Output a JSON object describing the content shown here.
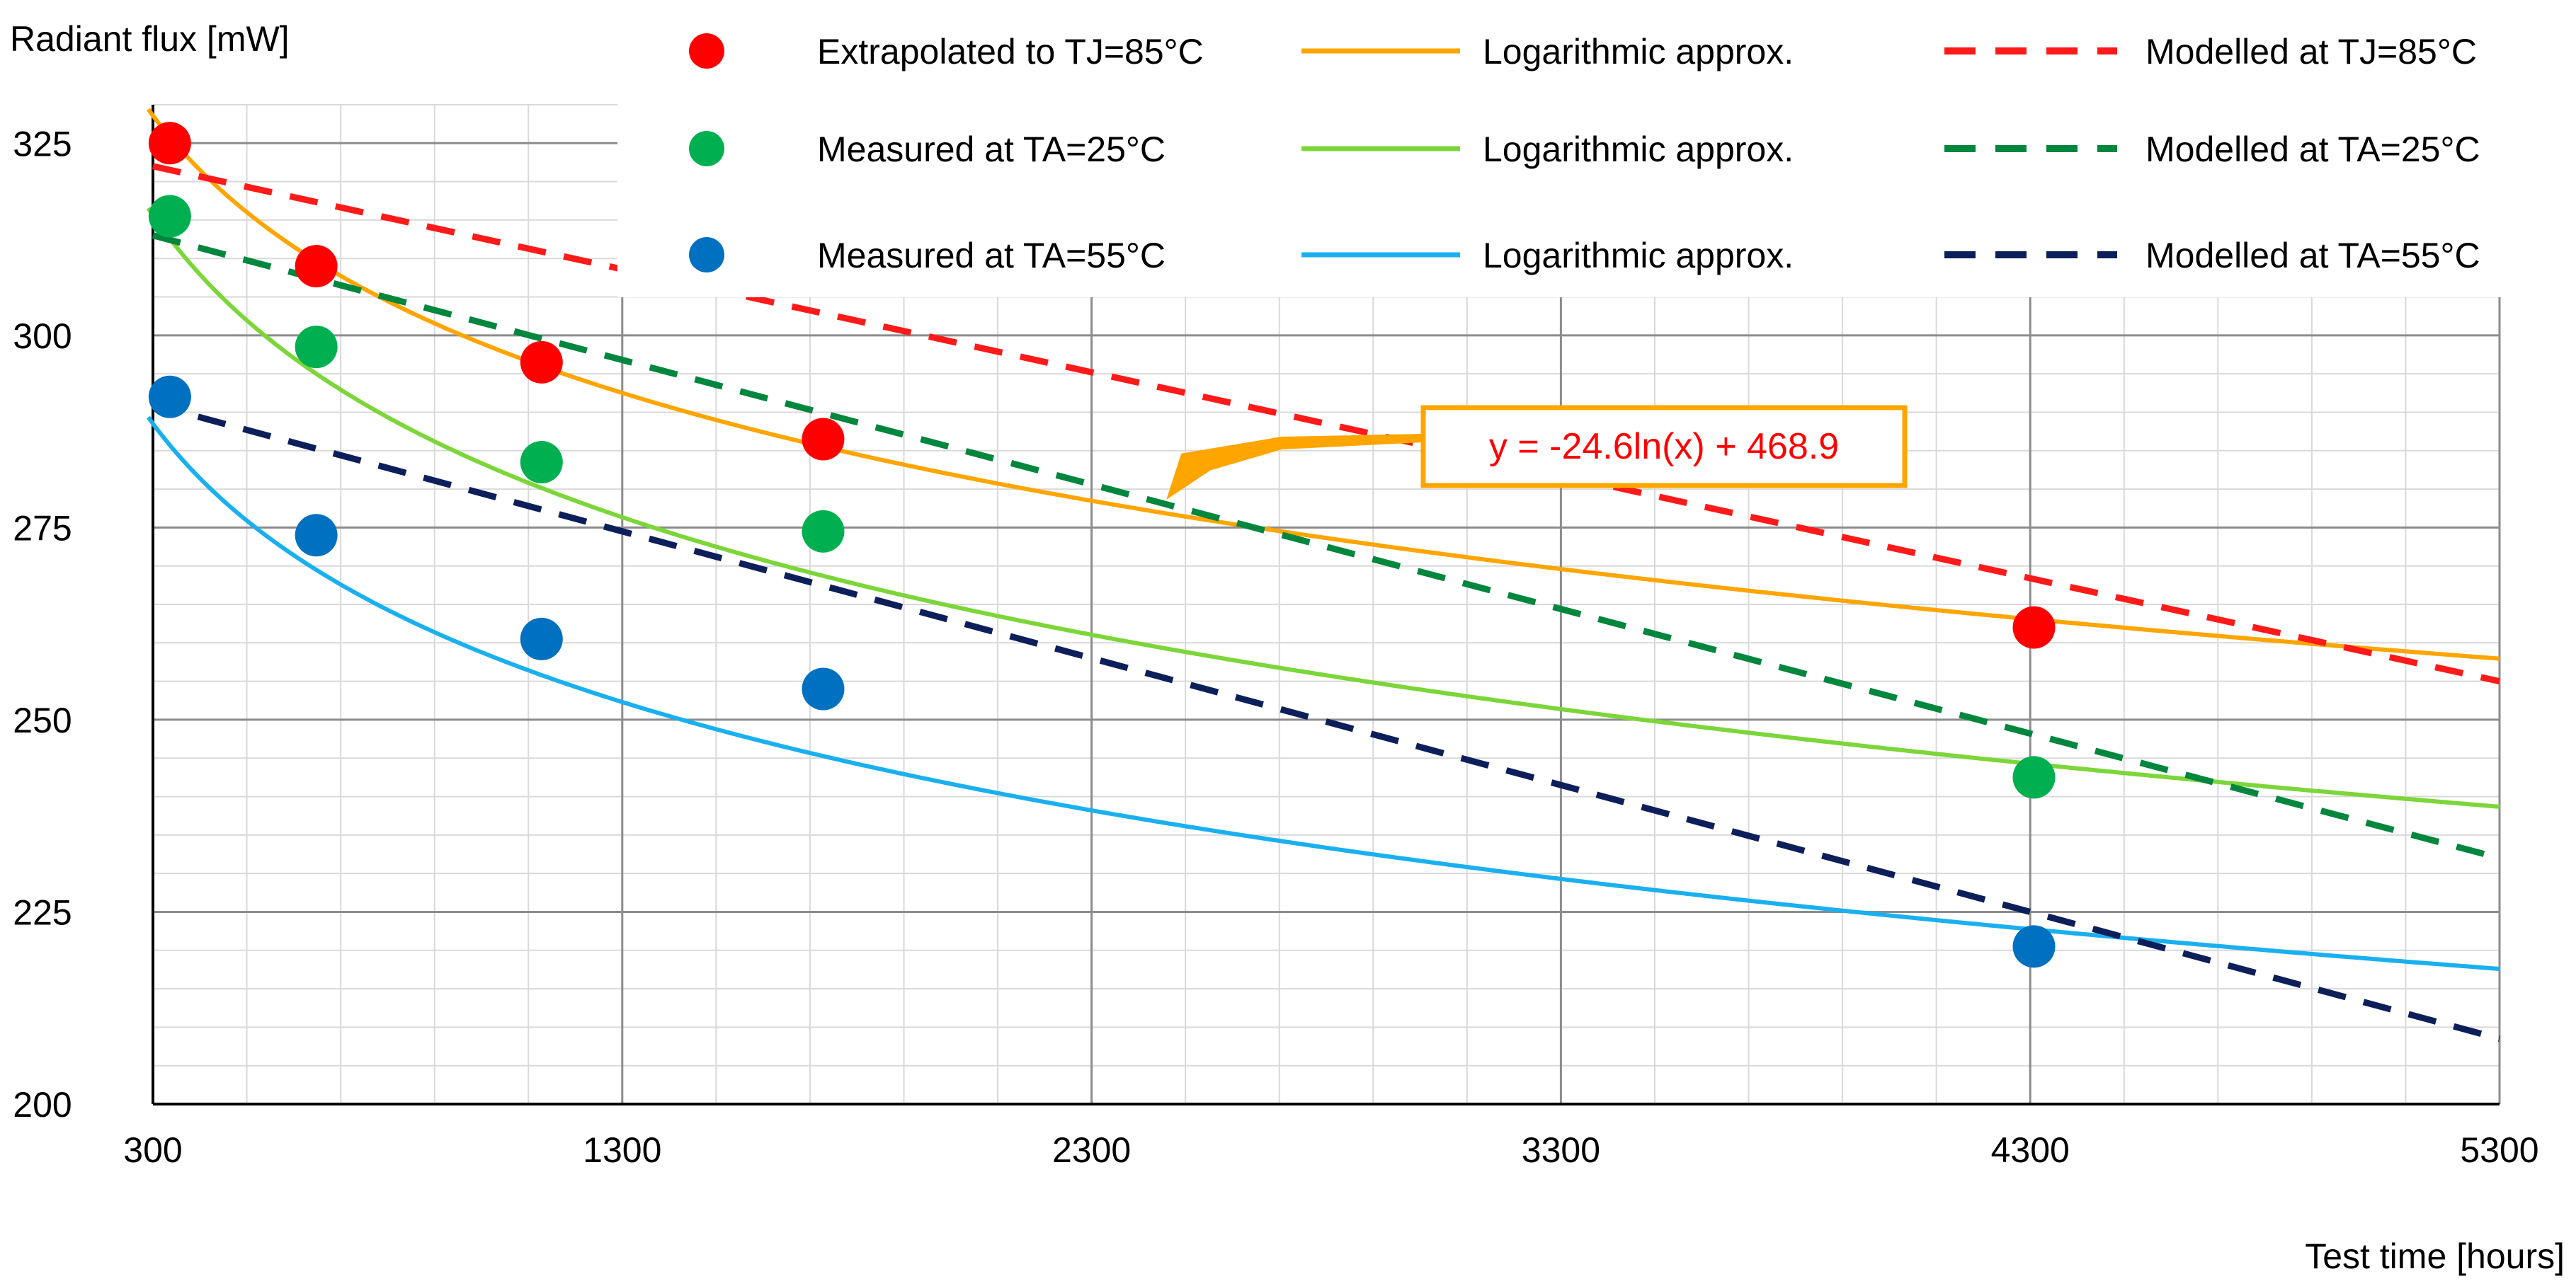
{
  "chart_data": {
    "type": "line",
    "title": "",
    "ylabel": "Radiant flux [mW]",
    "xlabel": "Test time [hours]",
    "xlim": [
      300,
      5300
    ],
    "ylim": [
      200,
      330
    ],
    "x_ticks": [
      300,
      1300,
      2300,
      3300,
      4300,
      5300
    ],
    "y_ticks": [
      200,
      225,
      250,
      275,
      300,
      325
    ],
    "grid": true,
    "legend_position": "top-right",
    "measured_series": [
      {
        "key": "tj85",
        "name": "Extrapolated to TJ=85°C",
        "color": "#ff0000",
        "x": [
          336,
          648,
          1128,
          1728,
          4308
        ],
        "y": [
          325,
          309,
          296.5,
          286.5,
          262
        ]
      },
      {
        "key": "ta25",
        "name": "Measured at TA=25°C",
        "color": "#00b050",
        "x": [
          336,
          648,
          1128,
          1728,
          4308
        ],
        "y": [
          315.5,
          298.5,
          283.5,
          274.5,
          242.5
        ]
      },
      {
        "key": "ta55",
        "name": "Measured at TA=55°C",
        "color": "#0070c0",
        "x": [
          336,
          648,
          1128,
          1728,
          4308
        ],
        "y": [
          292,
          274,
          260.5,
          254,
          220.5
        ]
      }
    ],
    "log_series": [
      {
        "key": "tj85",
        "name": "Logarithmic approx.",
        "color": "#ffa500",
        "a": -24.6,
        "b": 468.9
      },
      {
        "key": "ta25",
        "name": "Logarithmic approx.",
        "color": "#7cd63a",
        "a": -26.8,
        "b": 468.5
      },
      {
        "key": "ta55",
        "name": "Logarithmic approx.",
        "color": "#1ab0f0",
        "a": -24.7,
        "b": 429.4
      }
    ],
    "modelled_series": [
      {
        "key": "tj85",
        "name": "Modelled at TJ=85°C",
        "color": "#ff1a1a",
        "x": [
          300,
          5300
        ],
        "y": [
          322,
          255
        ]
      },
      {
        "key": "ta25",
        "name": "Modelled at TA=25°C",
        "color": "#00863d",
        "x": [
          300,
          5300
        ],
        "y": [
          313,
          232
        ]
      },
      {
        "key": "ta55",
        "name": "Modelled at TA=55°C",
        "color": "#0d1f5a",
        "x": [
          300,
          5300
        ],
        "y": [
          291,
          208.5
        ]
      }
    ],
    "annotation": {
      "text": "y = -24.6ln(x) + 468.9",
      "target_x": 2450,
      "target_y": 277,
      "text_color": "#ff0000",
      "border_color": "#ffa500"
    }
  }
}
